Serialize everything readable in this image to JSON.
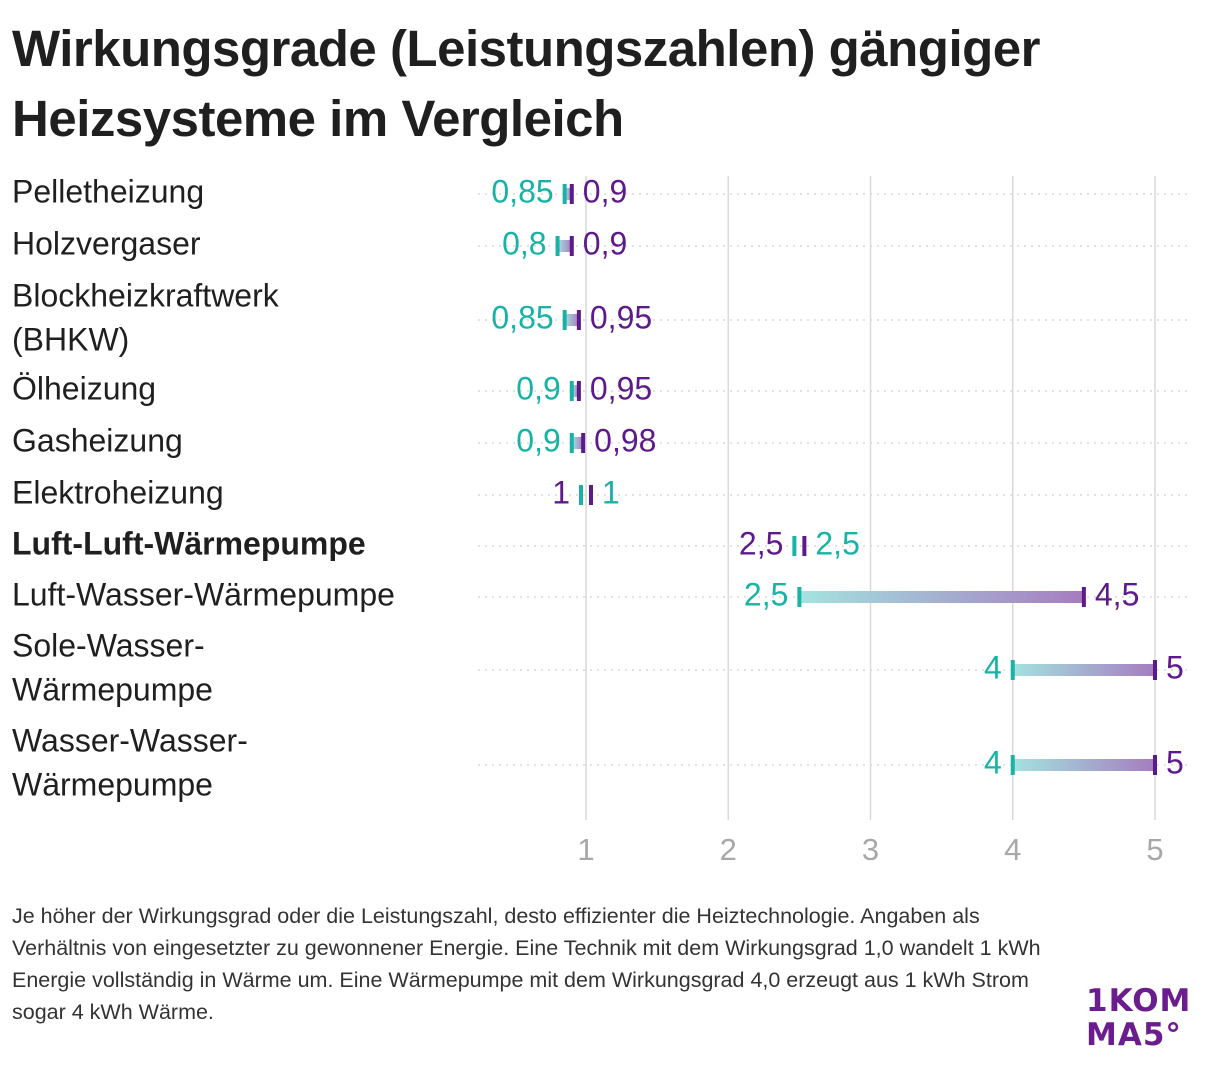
{
  "title": "Wirkungsgrade (Leistungszahlen) gängiger Heizsysteme im Vergleich",
  "note": "Je höher der Wirkungsgrad oder die Leistungszahl, desto effizienter die Heiztechnologie. Angaben als Verhältnis von eingesetzter zu gewonnener Energie. Eine Technik mit dem Wirkungsgrad 1,0 wandelt 1 kWh Energie vollständig in Wärme um. Eine Wärmepumpe mit dem Wirkungsgrad 4,0 erzeugt aus 1 kWh Strom sogar 4 kWh Wärme.",
  "logo": {
    "line1": "1KOM",
    "line2": "MA5°"
  },
  "colors": {
    "min": "#18b3a6",
    "max": "#5e1a8a",
    "grid": "#d9d9d9",
    "tick": "#a8a8a8"
  },
  "chart_data": {
    "type": "range",
    "title": "Wirkungsgrade (Leistungszahlen) gängiger Heizsysteme im Vergleich",
    "xlim": [
      0.25,
      5.3
    ],
    "xticks": [
      {
        "value": 1,
        "label": "1"
      },
      {
        "value": 2,
        "label": "2"
      },
      {
        "value": 3,
        "label": "3"
      },
      {
        "value": 4,
        "label": "4"
      },
      {
        "value": 5,
        "label": "5"
      }
    ],
    "grid": true,
    "rows": [
      {
        "category": "Pelletheizung",
        "min": 0.85,
        "max": 0.9,
        "min_label": "0,85",
        "max_label": "0,9",
        "bold": false
      },
      {
        "category": "Holzvergaser",
        "min": 0.8,
        "max": 0.9,
        "min_label": "0,8",
        "max_label": "0,9",
        "bold": false
      },
      {
        "category": "Blockheizkraftwerk (BHKW)",
        "min": 0.85,
        "max": 0.95,
        "min_label": "0,85",
        "max_label": "0,95",
        "bold": false
      },
      {
        "category": "Ölheizung",
        "min": 0.9,
        "max": 0.95,
        "min_label": "0,9",
        "max_label": "0,95",
        "bold": false
      },
      {
        "category": "Gasheizung",
        "min": 0.9,
        "max": 0.98,
        "min_label": "0,9",
        "max_label": "0,98",
        "bold": false
      },
      {
        "category": "Elektroheizung",
        "min": 1,
        "max": 1,
        "min_label": "1",
        "max_label": "1",
        "bold": false
      },
      {
        "category": "Luft-Luft-Wärmepumpe",
        "min": 2.5,
        "max": 2.5,
        "min_label": "2,5",
        "max_label": "2,5",
        "bold": true
      },
      {
        "category": "Luft-Wasser-Wärmepumpe",
        "min": 2.5,
        "max": 4.5,
        "min_label": "2,5",
        "max_label": "4,5",
        "bold": false
      },
      {
        "category": "Sole-Wasser-Wärmepumpe",
        "min": 4,
        "max": 5,
        "min_label": "4",
        "max_label": "5",
        "bold": false
      },
      {
        "category": "Wasser-Wasser-Wärmepumpe",
        "min": 4,
        "max": 5,
        "min_label": "4",
        "max_label": "5",
        "bold": false
      }
    ]
  }
}
